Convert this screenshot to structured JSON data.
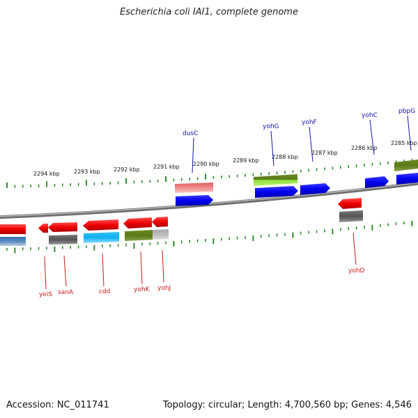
{
  "title": "Escherichia coli IAI1, complete genome",
  "footer": {
    "accession": "Accession: NC_011741",
    "topology": "Topology: circular; Length: 4,700,560 bp; Genes: 4,546"
  },
  "colors": {
    "backbone": "#7a7a7a",
    "tick": "#2e8b2e",
    "forward_label": "#1010b0",
    "reverse_label": "#c81818"
  },
  "ruler": [
    {
      "label": "2294 kbp"
    },
    {
      "label": "2293 kbp"
    },
    {
      "label": "2292 kbp"
    },
    {
      "label": "2291 kbp"
    },
    {
      "label": "2290 kbp"
    },
    {
      "label": "2289 kbp"
    },
    {
      "label": "2288 kbp"
    },
    {
      "label": "2287 kbp"
    },
    {
      "label": "2286 kbp"
    },
    {
      "label": "2285 kbp"
    }
  ],
  "genes_forward": [
    {
      "name": "dusC",
      "color": "blue"
    },
    {
      "name": "yohG",
      "color": "blue"
    },
    {
      "name": "yohF",
      "color": "blue"
    },
    {
      "name": "yohC",
      "color": "blue"
    },
    {
      "name": "pbpG",
      "color": "blue"
    }
  ],
  "genes_reverse": [
    {
      "name": "yeiS",
      "color": "red"
    },
    {
      "name": "sanA",
      "color": "red"
    },
    {
      "name": "cdd",
      "color": "red"
    },
    {
      "name": "yohK",
      "color": "red"
    },
    {
      "name": "yohJ",
      "color": "red"
    },
    {
      "name": "yohD",
      "color": "red"
    }
  ],
  "feature_tracks": [
    {
      "track": "forward-cog",
      "colors": [
        "pink",
        "olive-green",
        "olive-green"
      ]
    },
    {
      "track": "reverse-cog",
      "colors": [
        "steel-blue",
        "dark-gray",
        "cyan",
        "olive-green",
        "light-gray",
        "dark-gray"
      ]
    }
  ]
}
